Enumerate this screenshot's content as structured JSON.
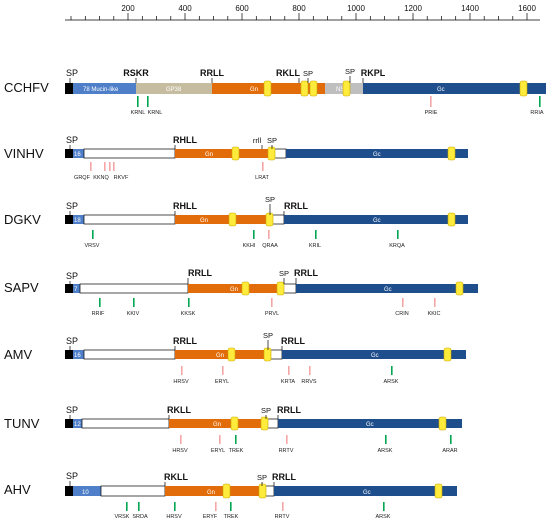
{
  "axis": {
    "ticks": [
      "200",
      "400",
      "600",
      "800",
      "1000",
      "1200",
      "1400",
      "1600"
    ]
  },
  "colors": {
    "mucin": "#4f7fc9",
    "gp38": "#c6bda0",
    "gn": "#e36c0a",
    "nsm": "#bfbfbf",
    "gc": "#1f4e8c",
    "tm": "#ffeb3b",
    "sp": "#000000",
    "green": "#00a650",
    "pink": "#f4a6a6"
  },
  "viruses": [
    {
      "name": "CCHFV",
      "sp": "SP",
      "motifs": [
        "RSKR",
        "RRLL",
        "RKLL",
        "RKPL"
      ],
      "sp_small": [
        "SP",
        "SP"
      ],
      "segments": [
        "78 Mucin-like",
        "GP38",
        "Gn",
        "NSm",
        "Gc"
      ],
      "green_sites": [
        "KRNL",
        "KRNL",
        "RRIA"
      ],
      "pink_sites": [
        "PRIE"
      ]
    },
    {
      "name": "VINHV",
      "sp": "SP",
      "motifs": [
        "RHLL",
        "rrll"
      ],
      "sp_small": [
        "SP"
      ],
      "segments": [
        "16",
        "Gn",
        "Gc"
      ],
      "green_sites": [],
      "pink_sites": [
        "GRQF",
        "KKNQ",
        "RKVF",
        "LRAT"
      ]
    },
    {
      "name": "DGKV",
      "sp": "SP",
      "motifs": [
        "RHLL",
        "RRLL"
      ],
      "sp_small": [
        "SP"
      ],
      "segments": [
        "18",
        "Gn",
        "Gc"
      ],
      "green_sites": [
        "VRSV",
        "KKHI",
        "KRIL",
        "KRQA"
      ],
      "pink_sites": [
        "QRAA"
      ]
    },
    {
      "name": "SAPV",
      "sp": "SP",
      "motifs": [
        "RRLL",
        "RRLL"
      ],
      "sp_small": [
        "SP"
      ],
      "segments": [
        "7",
        "Gn",
        "Gc"
      ],
      "green_sites": [
        "RRIF",
        "KKIV",
        "KKSK"
      ],
      "pink_sites": [
        "PRVL",
        "CRIN",
        "KKIC"
      ]
    },
    {
      "name": "AMV",
      "sp": "SP",
      "motifs": [
        "RRLL",
        "RRLL"
      ],
      "sp_small": [
        "SP"
      ],
      "segments": [
        "16",
        "Gn",
        "Gc"
      ],
      "green_sites": [
        "ARSK"
      ],
      "pink_sites": [
        "HRSV",
        "ERYL",
        "KRTA",
        "RRVS"
      ]
    },
    {
      "name": "TUNV",
      "sp": "SP",
      "motifs": [
        "RKLL",
        "RRLL"
      ],
      "sp_small": [
        "SP"
      ],
      "segments": [
        "12",
        "Gn",
        "Gc"
      ],
      "green_sites": [
        "TREK",
        "ARSK",
        "ARAR"
      ],
      "pink_sites": [
        "HRSV",
        "ERYL",
        "RRTV"
      ]
    },
    {
      "name": "AHV",
      "sp": "SP",
      "motifs": [
        "RKLL",
        "RRLL"
      ],
      "sp_small": [
        "SP"
      ],
      "segments": [
        "10",
        "Gn",
        "Gc"
      ],
      "green_sites": [
        "VRSK",
        "SRDA",
        "HRSV",
        "TREK",
        "ARSK"
      ],
      "pink_sites": [
        "ERYF",
        "RRTV"
      ]
    }
  ]
}
